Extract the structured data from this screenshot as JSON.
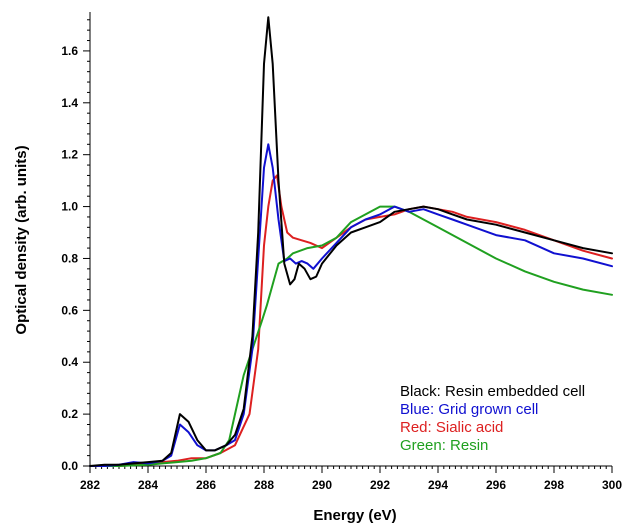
{
  "chart_data": {
    "type": "line",
    "title": "",
    "xlabel": "Energy (eV)",
    "ylabel": "Optical density (arb. units)",
    "xlim": [
      282,
      300
    ],
    "ylim": [
      0,
      1.75
    ],
    "x_ticks": [
      "282",
      "284",
      "286",
      "288",
      "290",
      "292",
      "294",
      "296",
      "298",
      "300"
    ],
    "y_ticks": [
      "0.0",
      "0.2",
      "0.4",
      "0.6",
      "0.8",
      "1.0",
      "1.2",
      "1.4",
      "1.6"
    ],
    "grid": false,
    "legend_position": "bottom-right",
    "series": [
      {
        "name": "Black: Resin embedded cell",
        "color": "#000000",
        "points": [
          [
            282,
            0
          ],
          [
            282.5,
            0.005
          ],
          [
            283,
            0.005
          ],
          [
            283.5,
            0.01
          ],
          [
            284,
            0.015
          ],
          [
            284.5,
            0.02
          ],
          [
            284.8,
            0.05
          ],
          [
            285.1,
            0.2
          ],
          [
            285.4,
            0.17
          ],
          [
            285.7,
            0.1
          ],
          [
            286,
            0.06
          ],
          [
            286.3,
            0.06
          ],
          [
            286.7,
            0.08
          ],
          [
            287,
            0.12
          ],
          [
            287.3,
            0.22
          ],
          [
            287.6,
            0.5
          ],
          [
            287.8,
            0.9
          ],
          [
            288,
            1.55
          ],
          [
            288.15,
            1.73
          ],
          [
            288.3,
            1.55
          ],
          [
            288.5,
            1.1
          ],
          [
            288.7,
            0.78
          ],
          [
            288.9,
            0.7
          ],
          [
            289.05,
            0.72
          ],
          [
            289.2,
            0.78
          ],
          [
            289.4,
            0.76
          ],
          [
            289.6,
            0.72
          ],
          [
            289.8,
            0.73
          ],
          [
            290,
            0.78
          ],
          [
            290.5,
            0.85
          ],
          [
            291,
            0.9
          ],
          [
            291.5,
            0.92
          ],
          [
            292,
            0.94
          ],
          [
            292.5,
            0.98
          ],
          [
            293,
            0.99
          ],
          [
            293.5,
            1
          ],
          [
            294,
            0.99
          ],
          [
            294.5,
            0.97
          ],
          [
            295,
            0.95
          ],
          [
            296,
            0.93
          ],
          [
            297,
            0.9
          ],
          [
            298,
            0.87
          ],
          [
            299,
            0.84
          ],
          [
            300,
            0.82
          ]
        ]
      },
      {
        "name": "Blue: Grid grown cell",
        "color": "#1010d0",
        "points": [
          [
            282,
            0
          ],
          [
            282.5,
            0
          ],
          [
            283,
            0.005
          ],
          [
            283.5,
            0.015
          ],
          [
            284,
            0.01
          ],
          [
            284.5,
            0.02
          ],
          [
            284.8,
            0.04
          ],
          [
            285.1,
            0.16
          ],
          [
            285.4,
            0.13
          ],
          [
            285.7,
            0.08
          ],
          [
            286,
            0.06
          ],
          [
            286.3,
            0.06
          ],
          [
            286.7,
            0.08
          ],
          [
            287,
            0.1
          ],
          [
            287.3,
            0.2
          ],
          [
            287.6,
            0.45
          ],
          [
            287.8,
            0.8
          ],
          [
            288,
            1.15
          ],
          [
            288.15,
            1.24
          ],
          [
            288.3,
            1.15
          ],
          [
            288.5,
            0.95
          ],
          [
            288.7,
            0.79
          ],
          [
            288.9,
            0.8
          ],
          [
            289.1,
            0.78
          ],
          [
            289.3,
            0.79
          ],
          [
            289.5,
            0.78
          ],
          [
            289.7,
            0.76
          ],
          [
            290,
            0.8
          ],
          [
            290.5,
            0.86
          ],
          [
            291,
            0.92
          ],
          [
            291.5,
            0.95
          ],
          [
            292,
            0.97
          ],
          [
            292.5,
            1
          ],
          [
            293,
            0.98
          ],
          [
            293.5,
            0.99
          ],
          [
            294,
            0.97
          ],
          [
            294.5,
            0.95
          ],
          [
            295,
            0.93
          ],
          [
            296,
            0.89
          ],
          [
            297,
            0.87
          ],
          [
            298,
            0.82
          ],
          [
            299,
            0.8
          ],
          [
            300,
            0.77
          ]
        ]
      },
      {
        "name": "Red: Sialic acid",
        "color": "#dd2020",
        "points": [
          [
            282,
            0
          ],
          [
            283,
            0
          ],
          [
            283.5,
            0.005
          ],
          [
            284,
            0.01
          ],
          [
            284.5,
            0.015
          ],
          [
            285,
            0.02
          ],
          [
            285.5,
            0.03
          ],
          [
            286,
            0.03
          ],
          [
            286.5,
            0.05
          ],
          [
            287,
            0.08
          ],
          [
            287.5,
            0.2
          ],
          [
            287.8,
            0.45
          ],
          [
            288,
            0.85
          ],
          [
            288.15,
            1.0
          ],
          [
            288.3,
            1.1
          ],
          [
            288.45,
            1.12
          ],
          [
            288.6,
            1.0
          ],
          [
            288.8,
            0.9
          ],
          [
            289,
            0.88
          ],
          [
            289.3,
            0.87
          ],
          [
            289.6,
            0.86
          ],
          [
            290,
            0.84
          ],
          [
            290.5,
            0.88
          ],
          [
            291,
            0.92
          ],
          [
            291.5,
            0.95
          ],
          [
            292,
            0.96
          ],
          [
            292.5,
            0.97
          ],
          [
            293,
            0.99
          ],
          [
            293.5,
            1
          ],
          [
            294,
            0.99
          ],
          [
            294.5,
            0.98
          ],
          [
            295,
            0.96
          ],
          [
            296,
            0.94
          ],
          [
            297,
            0.91
          ],
          [
            298,
            0.87
          ],
          [
            299,
            0.83
          ],
          [
            300,
            0.8
          ]
        ]
      },
      {
        "name": "Green: Resin",
        "color": "#20a020",
        "points": [
          [
            282,
            0
          ],
          [
            283,
            0
          ],
          [
            284,
            0.005
          ],
          [
            284.5,
            0.01
          ],
          [
            285,
            0.015
          ],
          [
            285.5,
            0.02
          ],
          [
            286,
            0.03
          ],
          [
            286.5,
            0.05
          ],
          [
            286.8,
            0.1
          ],
          [
            287,
            0.2
          ],
          [
            287.3,
            0.35
          ],
          [
            287.6,
            0.45
          ],
          [
            287.9,
            0.55
          ],
          [
            288.1,
            0.62
          ],
          [
            288.3,
            0.7
          ],
          [
            288.5,
            0.78
          ],
          [
            288.8,
            0.8
          ],
          [
            289,
            0.82
          ],
          [
            289.5,
            0.84
          ],
          [
            290,
            0.85
          ],
          [
            290.5,
            0.88
          ],
          [
            291,
            0.94
          ],
          [
            291.5,
            0.97
          ],
          [
            292,
            1
          ],
          [
            292.5,
            1
          ],
          [
            293,
            0.98
          ],
          [
            293.5,
            0.95
          ],
          [
            294,
            0.92
          ],
          [
            295,
            0.86
          ],
          [
            296,
            0.8
          ],
          [
            297,
            0.75
          ],
          [
            298,
            0.71
          ],
          [
            299,
            0.68
          ],
          [
            300,
            0.66
          ]
        ]
      }
    ]
  }
}
